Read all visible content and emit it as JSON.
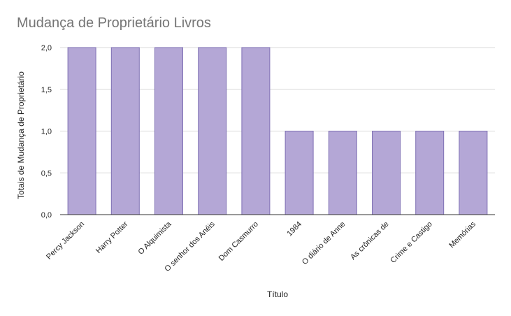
{
  "chart_data": {
    "type": "bar",
    "title": "Mudança de Proprietário Livros",
    "xlabel": "Título",
    "ylabel": "Totais de Mudança de Proprietário",
    "categories": [
      "Percy Jackson",
      "Harry Potter",
      "O Alquimista",
      "O senhor dos Anéis",
      "Dom Casmurro",
      "1984",
      "O diário de Anne",
      "As crônicas de",
      "Crime e Castigo",
      "Memórias"
    ],
    "values": [
      2,
      2,
      2,
      2,
      2,
      1,
      1,
      1,
      1,
      1
    ],
    "ylim": [
      0,
      2
    ],
    "yticks": [
      "0,0",
      "0,5",
      "1,0",
      "1,5",
      "2,0"
    ],
    "grid": true,
    "legend": "none",
    "bar_color": "#b4a7d6",
    "bar_edge_color": "#7e6fb3"
  }
}
